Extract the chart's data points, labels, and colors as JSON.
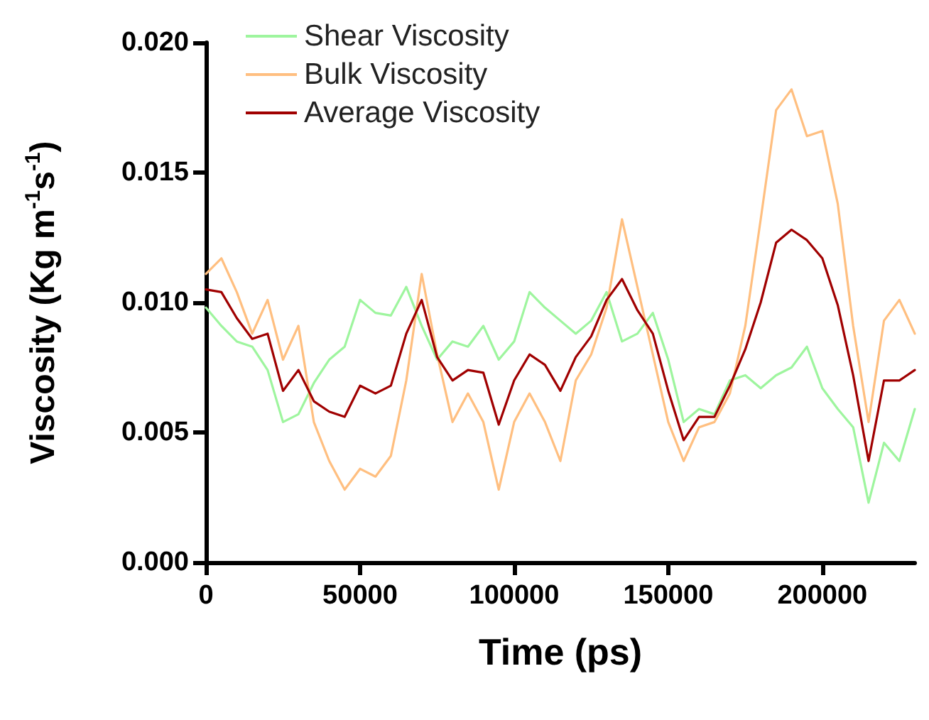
{
  "chart_data": {
    "type": "line",
    "xlabel": "Time (ps)",
    "ylabel": "Viscosity (Kg m$^{-1}$s$^{-1}$)",
    "x": [
      0,
      5000,
      10000,
      15000,
      20000,
      25000,
      30000,
      35000,
      40000,
      45000,
      50000,
      55000,
      60000,
      65000,
      70000,
      75000,
      80000,
      85000,
      90000,
      95000,
      100000,
      105000,
      110000,
      115000,
      120000,
      125000,
      130000,
      135000,
      140000,
      145000,
      150000,
      155000,
      160000,
      165000,
      170000,
      175000,
      180000,
      185000,
      190000,
      195000,
      200000,
      205000,
      210000,
      215000,
      220000,
      225000,
      230000
    ],
    "series": [
      {
        "name": "Shear Viscosity",
        "color": "#9ef59e",
        "values": [
          0.0098,
          0.0091,
          0.0085,
          0.0083,
          0.0074,
          0.0054,
          0.0057,
          0.0069,
          0.0078,
          0.0083,
          0.0101,
          0.0096,
          0.0095,
          0.0106,
          0.0091,
          0.0078,
          0.0085,
          0.0083,
          0.0091,
          0.0078,
          0.0085,
          0.0104,
          0.0098,
          0.0093,
          0.0088,
          0.0093,
          0.0104,
          0.0085,
          0.0088,
          0.0096,
          0.0078,
          0.0054,
          0.0059,
          0.0057,
          0.007,
          0.0072,
          0.0067,
          0.0072,
          0.0075,
          0.0083,
          0.0067,
          0.0059,
          0.0052,
          0.0023,
          0.0046,
          0.0039,
          0.0059
        ]
      },
      {
        "name": "Bulk Viscosity",
        "color": "#ffbf80",
        "values": [
          0.0111,
          0.0117,
          0.0104,
          0.0088,
          0.0101,
          0.0078,
          0.0091,
          0.0054,
          0.0039,
          0.0028,
          0.0036,
          0.0033,
          0.0041,
          0.007,
          0.0111,
          0.008,
          0.0054,
          0.0065,
          0.0054,
          0.0028,
          0.0054,
          0.0065,
          0.0054,
          0.0039,
          0.007,
          0.008,
          0.0098,
          0.0132,
          0.0106,
          0.008,
          0.0054,
          0.0039,
          0.0052,
          0.0054,
          0.0065,
          0.0091,
          0.0132,
          0.0174,
          0.0182,
          0.0164,
          0.0166,
          0.0138,
          0.0091,
          0.0054,
          0.0093,
          0.0101,
          0.0088
        ]
      },
      {
        "name": "Average Viscosity",
        "color": "#a00000",
        "values": [
          0.0105,
          0.0104,
          0.0094,
          0.0086,
          0.0088,
          0.0066,
          0.0074,
          0.0062,
          0.0058,
          0.0056,
          0.0068,
          0.0065,
          0.0068,
          0.0088,
          0.0101,
          0.0079,
          0.007,
          0.0074,
          0.0073,
          0.0053,
          0.007,
          0.008,
          0.0076,
          0.0066,
          0.0079,
          0.0087,
          0.0101,
          0.0109,
          0.0097,
          0.0088,
          0.0066,
          0.0047,
          0.0056,
          0.0056,
          0.0068,
          0.0082,
          0.01,
          0.0123,
          0.0128,
          0.0124,
          0.0117,
          0.0099,
          0.0072,
          0.0039,
          0.007,
          0.007,
          0.0074
        ]
      }
    ],
    "xlim": [
      0,
      230000
    ],
    "xticks": [
      0,
      50000,
      100000,
      150000,
      200000
    ],
    "ylim": [
      0,
      0.02
    ],
    "yticks": [
      {
        "value": 0,
        "label": "0.000"
      },
      {
        "value": 0.005,
        "label": "0.005"
      },
      {
        "value": 0.01,
        "label": "0.010"
      },
      {
        "value": 0.015,
        "label": "0.015"
      },
      {
        "value": 0.02,
        "label": "0.020"
      }
    ],
    "grid": false,
    "legend": "top left",
    "marker": "none",
    "line_style": "solid"
  }
}
